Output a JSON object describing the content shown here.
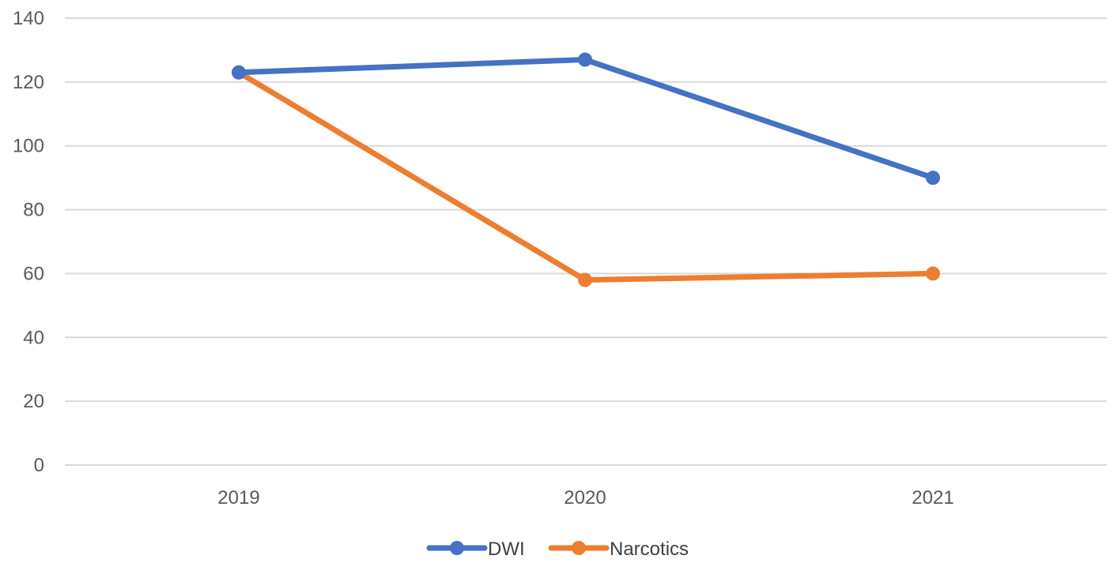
{
  "chart_data": {
    "type": "line",
    "title": "",
    "xlabel": "",
    "ylabel": "",
    "categories": [
      "2019",
      "2020",
      "2021"
    ],
    "ylim": [
      0,
      140
    ],
    "yticks": [
      0,
      20,
      40,
      60,
      80,
      100,
      120,
      140
    ],
    "grid": true,
    "legend_position": "bottom",
    "series": [
      {
        "name": "DWI",
        "color": "#4472c4",
        "values": [
          123,
          127,
          90
        ]
      },
      {
        "name": "Narcotics",
        "color": "#ed7d31",
        "values": [
          123,
          58,
          60
        ]
      }
    ]
  }
}
